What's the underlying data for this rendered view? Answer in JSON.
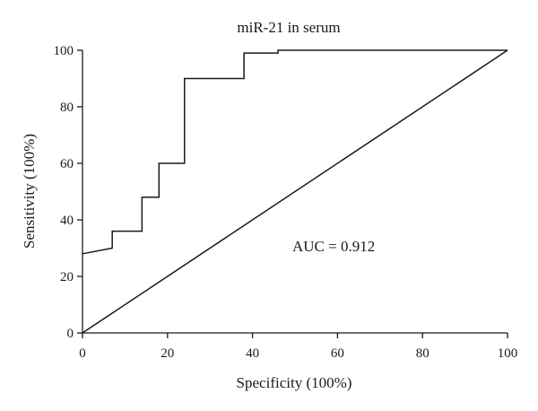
{
  "chart_data": {
    "type": "line",
    "title": "miR-21 in serum",
    "xlabel": "Specificity (100%)",
    "ylabel": "Sensitivity (100%)",
    "xlim": [
      0,
      100
    ],
    "ylim": [
      0,
      100
    ],
    "xticks": [
      "0",
      "20",
      "40",
      "60",
      "80",
      "100"
    ],
    "yticks": [
      "0",
      "20",
      "40",
      "60",
      "80",
      "100"
    ],
    "grid": false,
    "annotation": "AUC = 0.912",
    "colors": {
      "line": "#1a1a1a",
      "background": "#ffffff"
    },
    "series": [
      {
        "x": [
          0,
          7,
          7,
          14,
          14,
          18,
          18,
          24,
          24,
          38,
          38,
          46,
          46,
          100
        ],
        "y": [
          28,
          30,
          36,
          36,
          48,
          48,
          60,
          60,
          90,
          90,
          99,
          99,
          100,
          100
        ],
        "style": "step"
      },
      {
        "x": [
          0,
          100
        ],
        "y": [
          0,
          100
        ],
        "style": "reference"
      }
    ]
  }
}
